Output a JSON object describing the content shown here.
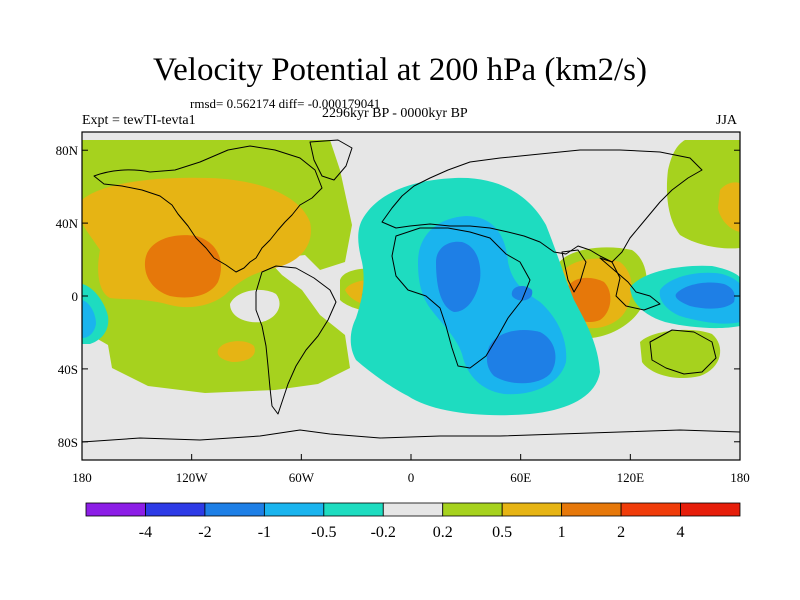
{
  "chart_data": {
    "type": "heatmap",
    "title": "Velocity Potential at 200 hPa (km2/s)",
    "stats_label": "rmsd= 0.562174 diff= -0.000179041",
    "left_label": "Expt = tewTI-tevta1",
    "center_label": "2296kyr BP - 0000kyr BP",
    "right_label": "JJA",
    "x_ticks": [
      "180",
      "120W",
      "60W",
      "0",
      "60E",
      "120E",
      "180"
    ],
    "y_ticks": [
      "80N",
      "40N",
      "0",
      "40S",
      "80S"
    ],
    "x_range": [
      -180,
      180
    ],
    "y_range": [
      -90,
      90
    ],
    "colorbar": {
      "labels": [
        "-4",
        "-2",
        "-1",
        "-0.5",
        "-0.2",
        "0.2",
        "0.5",
        "1",
        "2",
        "4"
      ],
      "colors": [
        "#8c1ee6",
        "#2d3be6",
        "#1e7fe6",
        "#1ab4ee",
        "#1edcc0",
        "#e6e6e6",
        "#a6d21e",
        "#e6b414",
        "#e6780a",
        "#f03c0a",
        "#e61e0a"
      ]
    },
    "regions": [
      {
        "name": "eastern-pacific-positive",
        "level": "1",
        "center": [
          -128,
          22
        ],
        "note": "strong positive maximum off Mexico"
      },
      {
        "name": "north-america-positive",
        "level": "0.5",
        "center": [
          -110,
          45
        ]
      },
      {
        "name": "south-pacific-positive",
        "level": "0.5",
        "center": [
          -100,
          -25
        ]
      },
      {
        "name": "tropical-atlantic-positive",
        "level": "1",
        "center": [
          -20,
          0
        ]
      },
      {
        "name": "indian-ocean-positive",
        "level": "1",
        "center": [
          100,
          5
        ]
      },
      {
        "name": "northwest-pacific-positive",
        "level": "0.5",
        "center": [
          165,
          55
        ]
      },
      {
        "name": "africa-negative",
        "level": "-1",
        "center": [
          28,
          10
        ]
      },
      {
        "name": "south-atlantic-negative",
        "level": "-1",
        "center": [
          50,
          -28
        ]
      },
      {
        "name": "western-pacific-negative",
        "level": "-1",
        "center": [
          160,
          5
        ]
      }
    ]
  }
}
